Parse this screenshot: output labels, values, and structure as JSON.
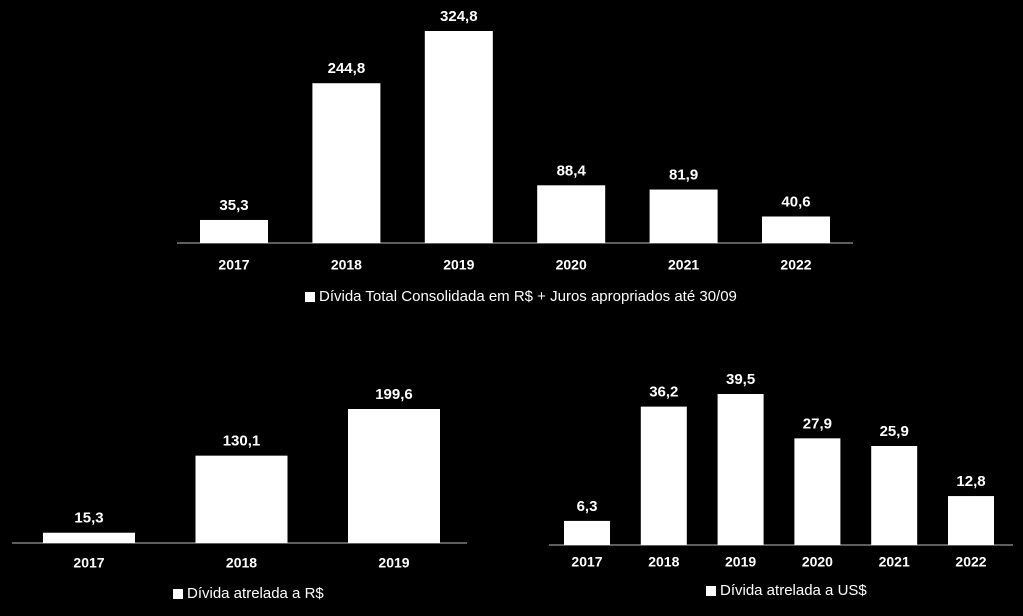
{
  "chart_data": [
    {
      "type": "bar",
      "categories": [
        "2017",
        "2018",
        "2019",
        "2020",
        "2021",
        "2022"
      ],
      "series": [
        {
          "name": "Dívida Total Consolidada em R$ + Juros apropriados até 30/09",
          "color": "#ffffff",
          "values": [
            35.3,
            244.8,
            324.8,
            88.4,
            81.9,
            40.6
          ],
          "value_labels": [
            "35,3",
            "244,8",
            "324,8",
            "88,4",
            "81,9",
            "40,6"
          ]
        }
      ]
    },
    {
      "type": "bar",
      "categories": [
        "2017",
        "2018",
        "2019"
      ],
      "series": [
        {
          "name": "Dívida atrelada a R$",
          "color": "#ffffff",
          "values": [
            15.3,
            130.1,
            199.6
          ],
          "value_labels": [
            "15,3",
            "130,1",
            "199,6"
          ]
        }
      ]
    },
    {
      "type": "bar",
      "categories": [
        "2017",
        "2018",
        "2019",
        "2020",
        "2021",
        "2022"
      ],
      "series": [
        {
          "name": "Dívida atrelada a US$",
          "color": "#ffffff",
          "values": [
            6.3,
            36.2,
            39.5,
            27.9,
            25.9,
            12.8
          ],
          "value_labels": [
            "6,3",
            "36,2",
            "39,5",
            "27,9",
            "25,9",
            "12,8"
          ]
        }
      ]
    }
  ]
}
